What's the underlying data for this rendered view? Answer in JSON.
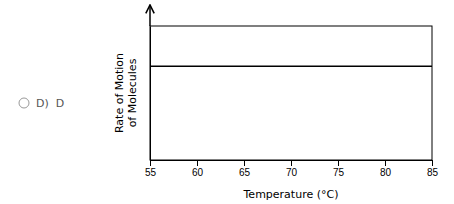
{
  "chart_data": {
    "type": "hline",
    "xlabel": "Temperature (°C)",
    "ylabel": "Rate of Motion\nof Molecules",
    "annotation": "D)  D",
    "values": [
      2.1
    ],
    "color": "#000000",
    "xlim": [
      55,
      85
    ],
    "ylim": [
      0,
      3
    ],
    "xticks": [
      55,
      60,
      65,
      70,
      75,
      80,
      85
    ],
    "tick_labels": "x"
  }
}
